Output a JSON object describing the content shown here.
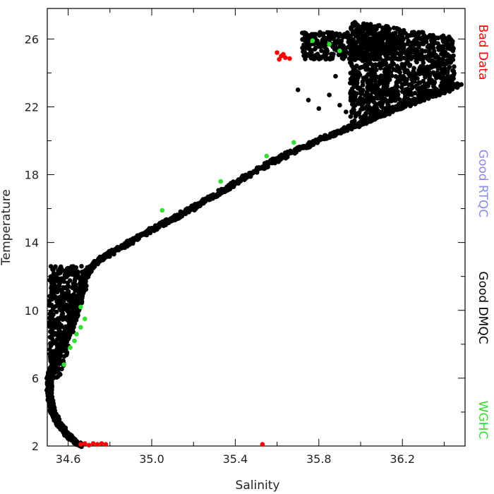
{
  "chart_data": {
    "type": "scatter",
    "xlabel": "Salinity",
    "ylabel": "Temperature",
    "xlim": [
      34.5,
      36.5
    ],
    "ylim": [
      2,
      27.8
    ],
    "x_ticks": [
      34.6,
      35.0,
      35.4,
      35.8,
      36.2
    ],
    "x_tick_labels": [
      "34.6",
      "35.0",
      "35.4",
      "35.8",
      "36.2"
    ],
    "y_ticks": [
      2,
      6,
      10,
      14,
      18,
      22,
      26
    ],
    "y_tick_labels": [
      "2",
      "6",
      "10",
      "14",
      "18",
      "22",
      "26"
    ],
    "grid": false,
    "legend_placement": "right (vertical text)",
    "series": [
      {
        "name": "Bad Data",
        "color": "#ff0000",
        "points": [
          [
            34.66,
            2.1
          ],
          [
            34.68,
            2.15
          ],
          [
            34.7,
            2.05
          ],
          [
            34.72,
            2.15
          ],
          [
            34.74,
            2.1
          ],
          [
            34.76,
            2.15
          ],
          [
            34.78,
            2.1
          ],
          [
            35.53,
            2.1
          ],
          [
            35.6,
            25.2
          ],
          [
            35.62,
            25.0
          ],
          [
            35.61,
            24.8
          ],
          [
            35.64,
            24.9
          ],
          [
            35.66,
            24.85
          ],
          [
            35.63,
            25.1
          ]
        ]
      },
      {
        "name": "Good RTQC",
        "color": "#8888ee",
        "points": []
      },
      {
        "name": "Good DMQC",
        "color": "#000000",
        "curve": [
          [
            34.66,
            2.0
          ],
          [
            34.6,
            2.6
          ],
          [
            34.55,
            3.4
          ],
          [
            34.52,
            4.3
          ],
          [
            34.51,
            5.2
          ],
          [
            34.51,
            6.0
          ],
          [
            34.53,
            6.8
          ],
          [
            34.56,
            7.6
          ],
          [
            34.59,
            8.4
          ],
          [
            34.62,
            9.2
          ],
          [
            34.64,
            10.0
          ],
          [
            34.66,
            11.0
          ],
          [
            34.68,
            12.0
          ],
          [
            34.73,
            12.8
          ],
          [
            34.82,
            13.5
          ],
          [
            34.95,
            14.4
          ],
          [
            35.1,
            15.4
          ],
          [
            35.25,
            16.4
          ],
          [
            35.4,
            17.5
          ],
          [
            35.55,
            18.6
          ],
          [
            35.7,
            19.5
          ],
          [
            35.85,
            20.3
          ],
          [
            36.0,
            21.0
          ],
          [
            36.15,
            21.8
          ],
          [
            36.3,
            22.5
          ],
          [
            36.48,
            23.3
          ]
        ],
        "cluster_deep": {
          "s": [
            34.51,
            34.72
          ],
          "t": [
            6.0,
            12.6
          ]
        },
        "cluster_upper": {
          "s": [
            35.95,
            36.45
          ],
          "t": [
            21.0,
            27.0
          ]
        },
        "cluster_top": {
          "s": [
            35.72,
            36.2
          ],
          "t": [
            24.8,
            26.4
          ]
        },
        "stragglers": [
          [
            35.75,
            22.4
          ],
          [
            35.8,
            21.9
          ],
          [
            35.85,
            22.7
          ],
          [
            35.9,
            22.1
          ],
          [
            35.95,
            23.4
          ],
          [
            35.7,
            23.0
          ],
          [
            35.88,
            23.8
          ],
          [
            35.93,
            21.7
          ]
        ]
      },
      {
        "name": "WGHC",
        "color": "#33dd33",
        "points": [
          [
            34.68,
            9.5
          ],
          [
            34.66,
            9.0
          ],
          [
            34.64,
            8.6
          ],
          [
            34.63,
            8.2
          ],
          [
            34.61,
            7.8
          ],
          [
            34.66,
            10.2
          ],
          [
            34.58,
            6.8
          ],
          [
            35.05,
            15.9
          ],
          [
            35.33,
            17.6
          ],
          [
            35.55,
            19.1
          ],
          [
            35.68,
            19.9
          ],
          [
            35.77,
            25.9
          ],
          [
            35.85,
            25.7
          ],
          [
            35.9,
            25.3
          ]
        ]
      }
    ]
  }
}
